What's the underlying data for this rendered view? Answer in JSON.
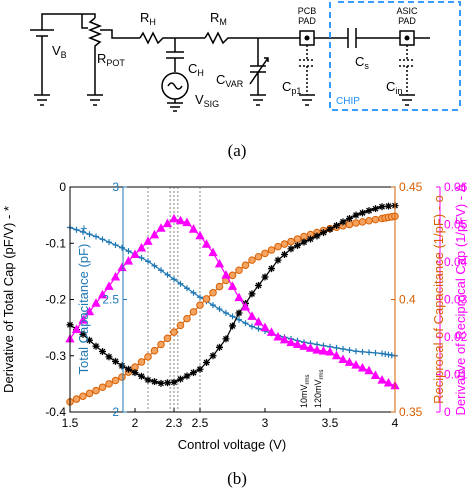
{
  "circuit": {
    "labels": {
      "vb": "V",
      "vb_sub": "B",
      "rpot": "R",
      "rpot_sub": "POT",
      "rh": "R",
      "rh_sub": "H",
      "ch": "C",
      "ch_sub": "H",
      "rm": "R",
      "rm_sub": "M",
      "cvar": "C",
      "cvar_sub": "VAR",
      "vsig": "V",
      "vsig_sub": "SIG",
      "cp1": "C",
      "cp1_sub": "p1",
      "cs": "C",
      "cs_sub": "s",
      "cin": "C",
      "cin_sub": "in",
      "pcb_pad_1": "PCB",
      "pcb_pad_2": "PAD",
      "asic_pad_1": "ASIC",
      "asic_pad_2": "PAD",
      "chip": "CHIP"
    },
    "colors": {
      "chip_box": "#1e90ff",
      "wire": "#000000"
    }
  },
  "captions": {
    "a": "(a)",
    "b": "(b)"
  },
  "chart_data": {
    "type": "line",
    "xlabel": "Control voltage (V)",
    "xlim": [
      1.5,
      4
    ],
    "x_ticks": [
      "1.5",
      "2",
      "2.3",
      "2.5",
      "3",
      "3.5",
      "4"
    ],
    "x_tick_values": [
      1.5,
      2,
      2.3,
      2.5,
      3,
      3.5,
      4
    ],
    "vlines": [
      2.1,
      2.27,
      2.3,
      2.33,
      2.5
    ],
    "annotations": [
      "10mV",
      "rms",
      "120mV",
      "rms"
    ],
    "axes": [
      {
        "id": "left",
        "label": "Derivative of Total Cap (pF/V) - *",
        "ylim": [
          -0.4,
          0
        ],
        "ticks": [
          "0",
          "-0.1",
          "-0.2",
          "-0.3",
          "-0.4"
        ],
        "tick_values": [
          0,
          -0.1,
          -0.2,
          -0.3,
          -0.4
        ],
        "color": "#000000"
      },
      {
        "id": "total",
        "label": "Total Capacitance (pF) - +",
        "ylim": [
          2,
          3
        ],
        "ticks": [
          "3",
          "2.5",
          "2"
        ],
        "tick_values": [
          3,
          2.5,
          2
        ],
        "color": "#1f78b4"
      },
      {
        "id": "recip",
        "label": "Reciprocal of Capacitance (1/pF) - o",
        "ylim": [
          0.35,
          0.45
        ],
        "ticks": [
          "0.45",
          "0.4",
          "0.35"
        ],
        "tick_values": [
          0.45,
          0.4,
          0.35
        ],
        "color": "#d95f02"
      },
      {
        "id": "drecip",
        "label": "Derivative of Reciprocal Cap (1/pFV) - Δ",
        "ylim": [
          0,
          0.06
        ],
        "ticks": [
          "0.06",
          "0.05",
          "0.04",
          "0.03",
          "0.02",
          "0.01",
          "0"
        ],
        "tick_values": [
          0.06,
          0.05,
          0.04,
          0.03,
          0.02,
          0.01,
          0
        ],
        "color": "#ff00ff"
      }
    ],
    "series": [
      {
        "axis": "total",
        "marker": "plus",
        "color": "#1f78b4",
        "x": [
          1.5,
          1.7,
          1.9,
          2.1,
          2.3,
          2.5,
          2.7,
          2.9,
          3.1,
          3.3,
          3.5,
          3.7,
          3.9,
          4.0
        ],
        "y": [
          2.82,
          2.78,
          2.73,
          2.67,
          2.59,
          2.51,
          2.44,
          2.38,
          2.34,
          2.31,
          2.29,
          2.27,
          2.26,
          2.25
        ]
      },
      {
        "axis": "recip",
        "marker": "circle",
        "color": "#d95f02",
        "x": [
          1.5,
          1.7,
          1.9,
          2.1,
          2.3,
          2.5,
          2.7,
          2.9,
          3.1,
          3.3,
          3.5,
          3.7,
          3.9,
          4.0
        ],
        "y": [
          0.3545,
          0.3595,
          0.3655,
          0.3745,
          0.3855,
          0.3975,
          0.4085,
          0.4175,
          0.4235,
          0.428,
          0.4315,
          0.434,
          0.436,
          0.437
        ]
      },
      {
        "axis": "left",
        "marker": "star",
        "color": "#000000",
        "x": [
          1.5,
          1.6,
          1.7,
          1.8,
          1.9,
          2.0,
          2.1,
          2.2,
          2.3,
          2.4,
          2.5,
          2.6,
          2.7,
          2.8,
          2.9,
          3.0,
          3.1,
          3.2,
          3.3,
          3.4,
          3.5,
          3.6,
          3.7,
          3.8,
          3.9,
          4.0
        ],
        "y": [
          -0.245,
          -0.262,
          -0.283,
          -0.302,
          -0.318,
          -0.33,
          -0.343,
          -0.349,
          -0.347,
          -0.336,
          -0.324,
          -0.3,
          -0.27,
          -0.224,
          -0.19,
          -0.16,
          -0.13,
          -0.11,
          -0.098,
          -0.087,
          -0.075,
          -0.062,
          -0.05,
          -0.042,
          -0.035,
          -0.033
        ]
      },
      {
        "axis": "drecip",
        "marker": "triangle",
        "color": "#ff00ff",
        "x": [
          1.5,
          1.6,
          1.7,
          1.8,
          1.9,
          2.0,
          2.1,
          2.2,
          2.3,
          2.4,
          2.5,
          2.6,
          2.7,
          2.8,
          2.9,
          3.0,
          3.1,
          3.2,
          3.3,
          3.4,
          3.5,
          3.6,
          3.7,
          3.8,
          3.9,
          4.0
        ],
        "y": [
          0.0195,
          0.0245,
          0.029,
          0.0335,
          0.0385,
          0.042,
          0.0455,
          0.049,
          0.0515,
          0.0505,
          0.047,
          0.0425,
          0.0365,
          0.0305,
          0.0255,
          0.0225,
          0.02,
          0.0185,
          0.0175,
          0.0165,
          0.016,
          0.014,
          0.0125,
          0.011,
          0.0085,
          0.007
        ]
      }
    ]
  }
}
